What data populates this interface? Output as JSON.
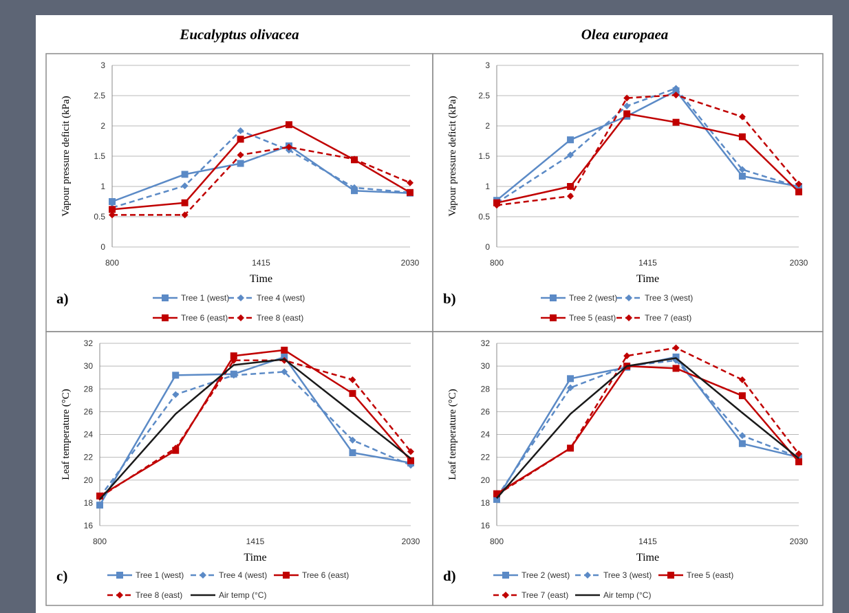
{
  "figure": {
    "colors": {
      "background": "#5d6575",
      "panel_bg": "#ffffff",
      "border": "#8c8c8c",
      "grid": "#b8b8b8",
      "blue": "#5b8ac6",
      "red": "#c00000",
      "black": "#1a1a1a"
    },
    "species_titles": [
      "Eucalyptus olivacea",
      "Olea europaea"
    ]
  },
  "chart_data": [
    {
      "panel": "a)",
      "type": "line",
      "title": "",
      "xlabel": "Time",
      "ylabel": "Vapour pressure deficit (kPa)",
      "x": [
        800,
        1100,
        1330,
        1530,
        1800,
        2030
      ],
      "x_ticks": [
        800,
        1415,
        2030
      ],
      "xlim": [
        800,
        2030
      ],
      "ylim": [
        0,
        3
      ],
      "y_ticks": [
        0,
        0.5,
        1,
        1.5,
        2,
        2.5,
        3
      ],
      "grid": true,
      "legend_position": "bottom",
      "series": [
        {
          "name": "Tree 1 (west)",
          "color": "#5b8ac6",
          "dash": false,
          "marker": "square",
          "values": [
            0.75,
            1.2,
            1.38,
            1.67,
            0.93,
            0.89
          ]
        },
        {
          "name": "Tree 4 (west)",
          "color": "#5b8ac6",
          "dash": true,
          "marker": "diamond",
          "values": [
            0.65,
            1.01,
            1.92,
            1.6,
            0.98,
            0.9
          ]
        },
        {
          "name": "Tree 6 (east)",
          "color": "#c00000",
          "dash": false,
          "marker": "square",
          "values": [
            0.62,
            0.73,
            1.78,
            2.02,
            1.44,
            0.9
          ]
        },
        {
          "name": "Tree 8 (east)",
          "color": "#c00000",
          "dash": true,
          "marker": "diamond",
          "values": [
            0.53,
            0.53,
            1.52,
            1.65,
            1.45,
            1.06
          ]
        }
      ]
    },
    {
      "panel": "b)",
      "type": "line",
      "title": "",
      "xlabel": "Time",
      "ylabel": "Vapour pressure deficit (kPa)",
      "x": [
        800,
        1100,
        1330,
        1530,
        1800,
        2030
      ],
      "x_ticks": [
        800,
        1415,
        2030
      ],
      "xlim": [
        800,
        2030
      ],
      "ylim": [
        0,
        3
      ],
      "y_ticks": [
        0,
        0.5,
        1,
        1.5,
        2,
        2.5,
        3
      ],
      "grid": true,
      "legend_position": "bottom",
      "series": [
        {
          "name": "Tree 2 (west)",
          "color": "#5b8ac6",
          "dash": false,
          "marker": "square",
          "values": [
            0.77,
            1.77,
            2.16,
            2.58,
            1.17,
            1.0
          ]
        },
        {
          "name": "Tree 3 (west)",
          "color": "#5b8ac6",
          "dash": true,
          "marker": "diamond",
          "values": [
            0.73,
            1.52,
            2.33,
            2.62,
            1.28,
            0.99
          ]
        },
        {
          "name": "Tree 5 (east)",
          "color": "#c00000",
          "dash": false,
          "marker": "square",
          "values": [
            0.73,
            1.0,
            2.2,
            2.06,
            1.82,
            0.91
          ]
        },
        {
          "name": "Tree 7 (east)",
          "color": "#c00000",
          "dash": true,
          "marker": "diamond",
          "values": [
            0.69,
            0.84,
            2.46,
            2.51,
            2.15,
            1.04
          ]
        }
      ]
    },
    {
      "panel": "c)",
      "type": "line",
      "title": "",
      "xlabel": "Time",
      "ylabel": "Leaf temperature (°C)",
      "x": [
        800,
        1100,
        1330,
        1530,
        1800,
        2030
      ],
      "x_ticks": [
        800,
        1415,
        2030
      ],
      "xlim": [
        800,
        2030
      ],
      "ylim": [
        16,
        32
      ],
      "y_ticks": [
        16,
        18,
        20,
        22,
        24,
        26,
        28,
        30,
        32
      ],
      "grid": true,
      "legend_position": "bottom",
      "series": [
        {
          "name": "Tree 1 (west)",
          "color": "#5b8ac6",
          "dash": false,
          "marker": "square",
          "values": [
            17.8,
            29.2,
            29.3,
            30.8,
            22.4,
            21.5
          ]
        },
        {
          "name": "Tree 4 (west)",
          "color": "#5b8ac6",
          "dash": true,
          "marker": "diamond",
          "values": [
            18.5,
            27.5,
            29.2,
            29.5,
            23.5,
            21.3
          ]
        },
        {
          "name": "Tree 6 (east)",
          "color": "#c00000",
          "dash": false,
          "marker": "square",
          "values": [
            18.6,
            22.6,
            30.9,
            31.4,
            27.6,
            21.7
          ]
        },
        {
          "name": "Tree 8 (east)",
          "color": "#c00000",
          "dash": true,
          "marker": "diamond",
          "values": [
            18.5,
            22.8,
            30.5,
            30.5,
            28.8,
            22.5
          ]
        },
        {
          "name": "Air temp (°C)",
          "color": "#1a1a1a",
          "dash": false,
          "marker": "none",
          "values": [
            18.3,
            25.8,
            30.1,
            30.6,
            25.9,
            21.9
          ]
        }
      ]
    },
    {
      "panel": "d)",
      "type": "line",
      "title": "",
      "xlabel": "Time",
      "ylabel": "Leaf temperature (°C)",
      "x": [
        800,
        1100,
        1330,
        1530,
        1800,
        2030
      ],
      "x_ticks": [
        800,
        1415,
        2030
      ],
      "xlim": [
        800,
        2030
      ],
      "ylim": [
        16,
        32
      ],
      "y_ticks": [
        16,
        18,
        20,
        22,
        24,
        26,
        28,
        30,
        32
      ],
      "grid": true,
      "legend_position": "bottom",
      "series": [
        {
          "name": "Tree 2 (west)",
          "color": "#5b8ac6",
          "dash": false,
          "marker": "square",
          "values": [
            18.3,
            28.9,
            29.9,
            30.8,
            23.2,
            22.0
          ]
        },
        {
          "name": "Tree 3 (west)",
          "color": "#5b8ac6",
          "dash": true,
          "marker": "diamond",
          "values": [
            18.5,
            28.1,
            30.0,
            30.5,
            23.9,
            22.0
          ]
        },
        {
          "name": "Tree 5 (east)",
          "color": "#c00000",
          "dash": false,
          "marker": "square",
          "values": [
            18.8,
            22.8,
            30.0,
            29.8,
            27.4,
            21.6
          ]
        },
        {
          "name": "Tree 7 (east)",
          "color": "#c00000",
          "dash": true,
          "marker": "diamond",
          "values": [
            18.7,
            22.8,
            30.9,
            31.6,
            28.8,
            22.3
          ]
        },
        {
          "name": "Air temp (°C)",
          "color": "#1a1a1a",
          "dash": false,
          "marker": "none",
          "values": [
            18.4,
            25.8,
            30.0,
            30.7,
            25.9,
            21.9
          ]
        }
      ]
    }
  ]
}
